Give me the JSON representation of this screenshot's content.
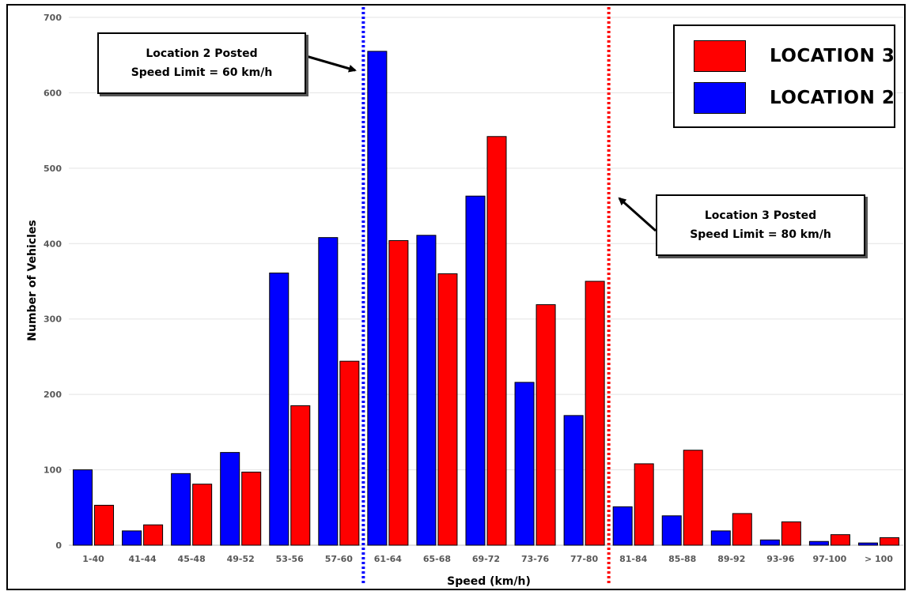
{
  "chart_data": {
    "type": "bar",
    "xlabel": "Speed (km/h)",
    "ylabel": "Number of Vehicles",
    "ylim": [
      0,
      700
    ],
    "yticks": [
      0,
      100,
      200,
      300,
      400,
      500,
      600,
      700
    ],
    "grid": true,
    "legend_position": "top-right",
    "categories": [
      "1-40",
      "41-44",
      "45-48",
      "49-52",
      "53-56",
      "57-60",
      "61-64",
      "65-68",
      "69-72",
      "73-76",
      "77-80",
      "81-84",
      "85-88",
      "89-92",
      "93-96",
      "97-100",
      "> 100"
    ],
    "series": [
      {
        "name": "LOCATION 2",
        "color": "#0000ff",
        "values": [
          100,
          19,
          95,
          123,
          361,
          408,
          655,
          411,
          463,
          216,
          172,
          51,
          39,
          19,
          7,
          5,
          3
        ]
      },
      {
        "name": "LOCATION 3",
        "color": "#ff0000",
        "values": [
          53,
          27,
          81,
          97,
          185,
          244,
          404,
          360,
          542,
          319,
          350,
          108,
          126,
          42,
          31,
          14,
          10
        ]
      }
    ],
    "reference_lines": [
      {
        "series": "LOCATION 2",
        "color": "#0000ff",
        "after_category": "57-60",
        "style": "dotted"
      },
      {
        "series": "LOCATION 3",
        "color": "#ff0000",
        "after_category": "77-80",
        "style": "dotted"
      }
    ],
    "annotations": [
      {
        "lines": [
          "Location 2 Posted",
          "Speed Limit = 60 km/h"
        ]
      },
      {
        "lines": [
          "Location 3 Posted",
          "Speed Limit = 80 km/h"
        ]
      }
    ]
  }
}
